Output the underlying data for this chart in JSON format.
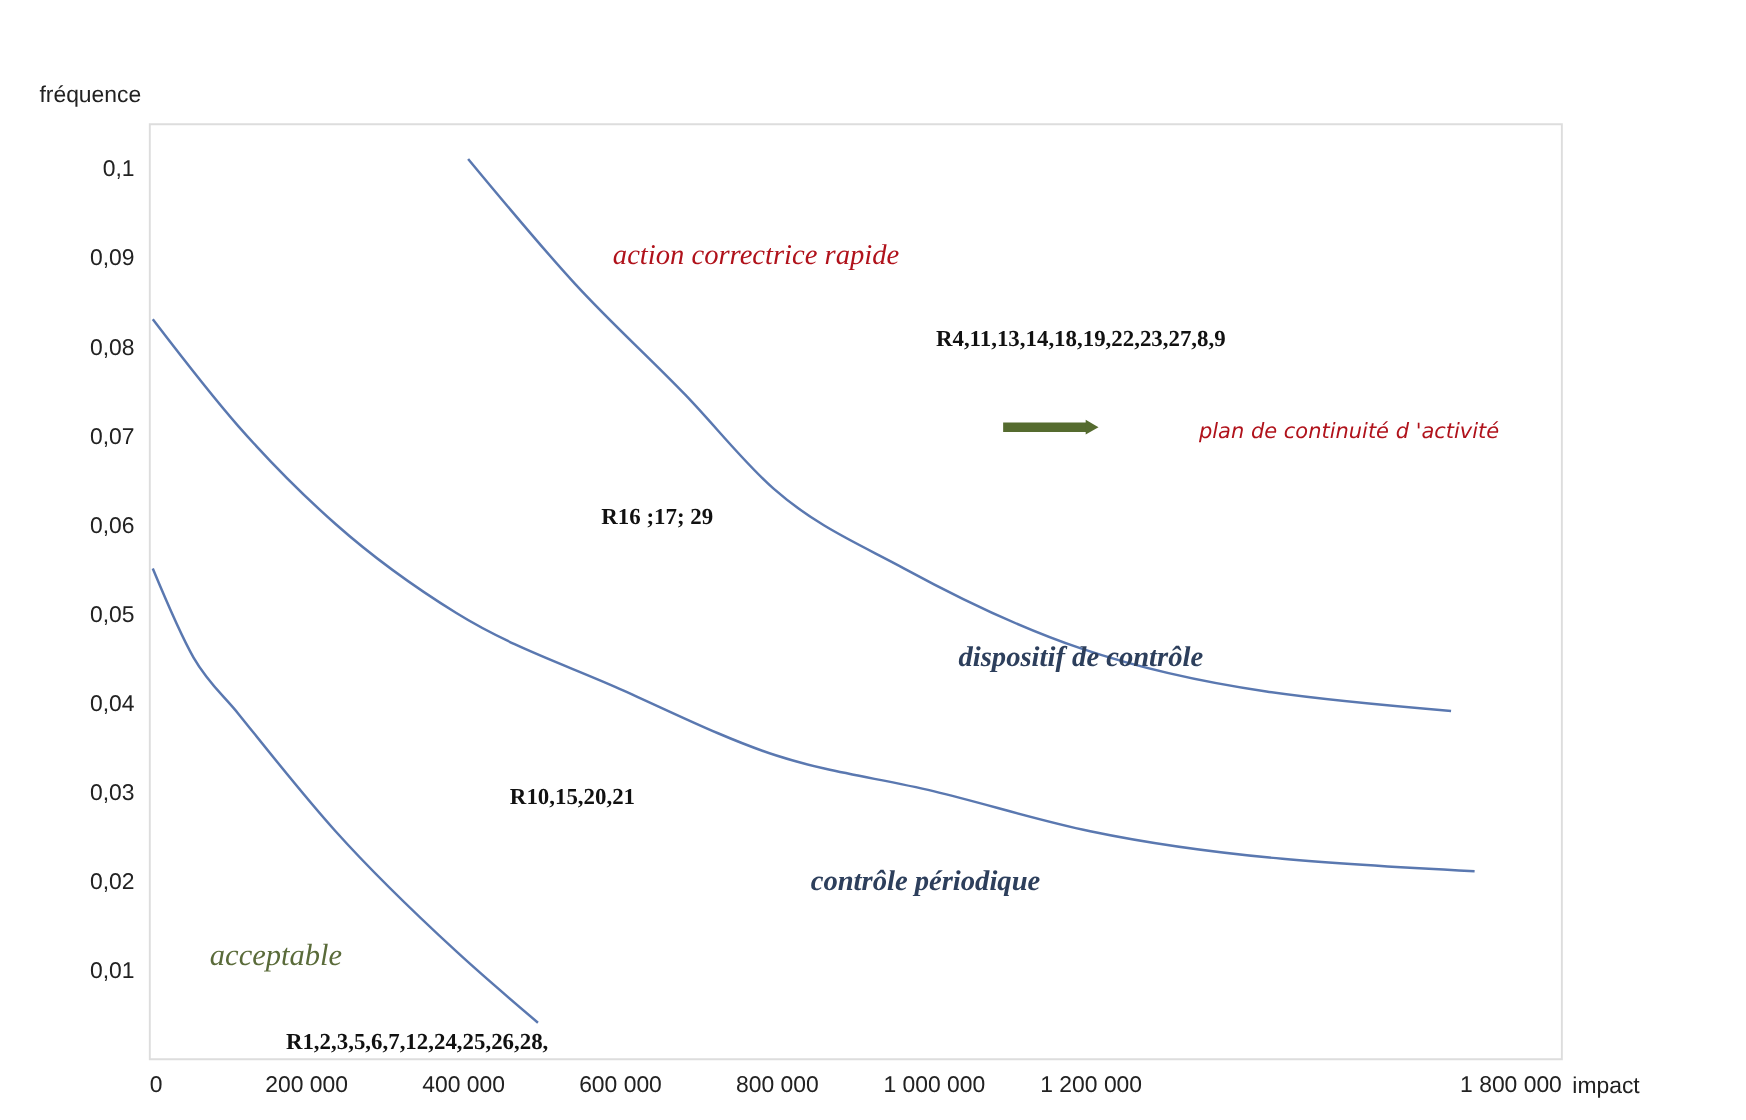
{
  "chart_data": {
    "type": "line",
    "xlabel": "impact",
    "ylabel": "fréquence",
    "xlim": [
      0,
      1800000
    ],
    "ylim": [
      0,
      0.105
    ],
    "xticks": [
      0,
      {
        "value": 200000,
        "label": "200 000"
      },
      {
        "value": 400000,
        "label": "400 000"
      },
      {
        "value": 600000,
        "label": "600 000"
      },
      {
        "value": 800000,
        "label": "800 000"
      },
      {
        "value": 1000000,
        "label": "1 000 000"
      },
      {
        "value": 1200000,
        "label": "1 200 000"
      },
      {
        "value": 1800000,
        "label": "1 800 000"
      }
    ],
    "yticks": [
      {
        "value": 0.01,
        "label": "0,01"
      },
      {
        "value": 0.02,
        "label": "0,02"
      },
      {
        "value": 0.03,
        "label": "0,03"
      },
      {
        "value": 0.04,
        "label": "0,04"
      },
      {
        "value": 0.05,
        "label": "0,05"
      },
      {
        "value": 0.06,
        "label": "0,06"
      },
      {
        "value": 0.07,
        "label": "0,07"
      },
      {
        "value": 0.08,
        "label": "0,08"
      },
      {
        "value": 0.09,
        "label": "0,09"
      },
      {
        "value": 0.1,
        "label": "0,1"
      }
    ],
    "series": [
      {
        "color": "#5a78b0",
        "x": [
          407000,
          543000,
          684000,
          796000,
          963000,
          1189000,
          1660000
        ],
        "values": [
          0.101,
          0.087,
          0.0745,
          0.064,
          0.055,
          0.046,
          0.039
        ]
      },
      {
        "color": "#5a78b0",
        "x": [
          5000,
          114000,
          238000,
          392000,
          600000,
          800000,
          1000000,
          1200000,
          1690000
        ],
        "values": [
          0.083,
          0.071,
          0.06,
          0.05,
          0.0415,
          0.034,
          0.03,
          0.0255,
          0.021
        ]
      },
      {
        "color": "#5a78b0",
        "x": [
          5000,
          57000,
          114000,
          238000,
          392000,
          496000
        ],
        "values": [
          0.055,
          0.045,
          0.0387,
          0.0255,
          0.012,
          0.004
        ]
      }
    ],
    "annotations": [
      "action correctrice rapide",
      "R4,11,13,14,18,19,22,23,27,8,9",
      "plan de continuité d 'activité",
      "R16 ;17; 29",
      "dispositif de contrôle",
      "R10,15,20,21",
      "contrôle périodique",
      "acceptable",
      "R1,2,3,5,6,7,12,24,25,26,28,"
    ],
    "grid": false
  }
}
